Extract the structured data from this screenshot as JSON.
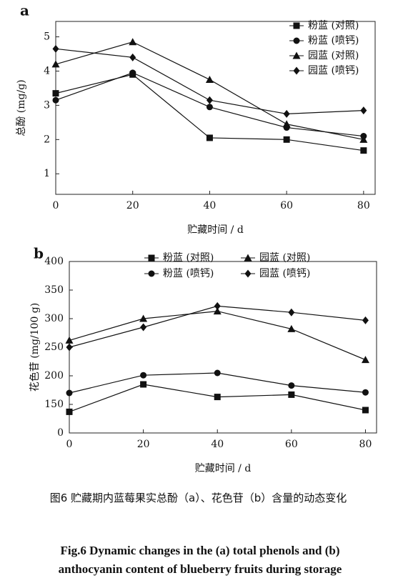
{
  "chart_data": [
    {
      "type": "line",
      "panel": "a",
      "y_label": "总酚 (mg/g)",
      "x_label": "贮藏时间 / d",
      "x": [
        0,
        20,
        40,
        60,
        80
      ],
      "xlim": [
        0,
        83
      ],
      "xticks": [
        0,
        20,
        40,
        60,
        80
      ],
      "ylim": [
        0.4,
        5.45
      ],
      "yticks": [
        1,
        2,
        3,
        4,
        5
      ],
      "legend": "upper right",
      "legend_columns": 1,
      "series": [
        {
          "name": "粉蓝 (对照)",
          "marker": "square",
          "color": "#111",
          "values": [
            3.35,
            3.9,
            2.05,
            2.0,
            1.68
          ]
        },
        {
          "name": "粉蓝 (喷钙)",
          "marker": "circle",
          "color": "#111",
          "values": [
            3.15,
            3.95,
            2.95,
            2.35,
            2.1
          ]
        },
        {
          "name": "园蓝 (对照)",
          "marker": "triangle",
          "color": "#111",
          "values": [
            4.2,
            4.85,
            3.75,
            2.45,
            2.0
          ]
        },
        {
          "name": "园蓝 (喷钙)",
          "marker": "diamond",
          "color": "#111",
          "values": [
            4.65,
            4.4,
            3.15,
            2.75,
            2.85
          ]
        }
      ]
    },
    {
      "type": "line",
      "panel": "b",
      "y_label": "花色苷 (mg/100 g)",
      "x_label": "贮藏时间 / d",
      "x": [
        0,
        20,
        40,
        60,
        80
      ],
      "xlim": [
        0,
        83
      ],
      "xticks": [
        0,
        20,
        40,
        60,
        80
      ],
      "ylim": [
        100,
        400
      ],
      "yticks": [
        {
          "value": 100,
          "label": "0"
        },
        150,
        200,
        250,
        300,
        350,
        400
      ],
      "legend": "upper center",
      "legend_columns": 2,
      "series": [
        {
          "name": "粉蓝 (对照)",
          "marker": "square",
          "color": "#111",
          "values": [
            137,
            185,
            163,
            167,
            140
          ]
        },
        {
          "name": "粉蓝 (喷钙)",
          "marker": "circle",
          "color": "#111",
          "values": [
            170,
            201,
            205,
            183,
            171
          ]
        },
        {
          "name": "园蓝 (对照)",
          "marker": "triangle",
          "color": "#111",
          "values": [
            262,
            300,
            313,
            282,
            228
          ]
        },
        {
          "name": "园蓝 (喷钙)",
          "marker": "diamond",
          "color": "#111",
          "values": [
            250,
            285,
            322,
            311,
            297
          ]
        }
      ]
    }
  ],
  "caption_cn": "图6 贮藏期内蓝莓果实总酚（a）、花色苷（b）含量的动态变化",
  "caption_en": "Fig.6 Dynamic changes in the (a) total phenols and (b) anthocyanin content of blueberry fruits during storage"
}
